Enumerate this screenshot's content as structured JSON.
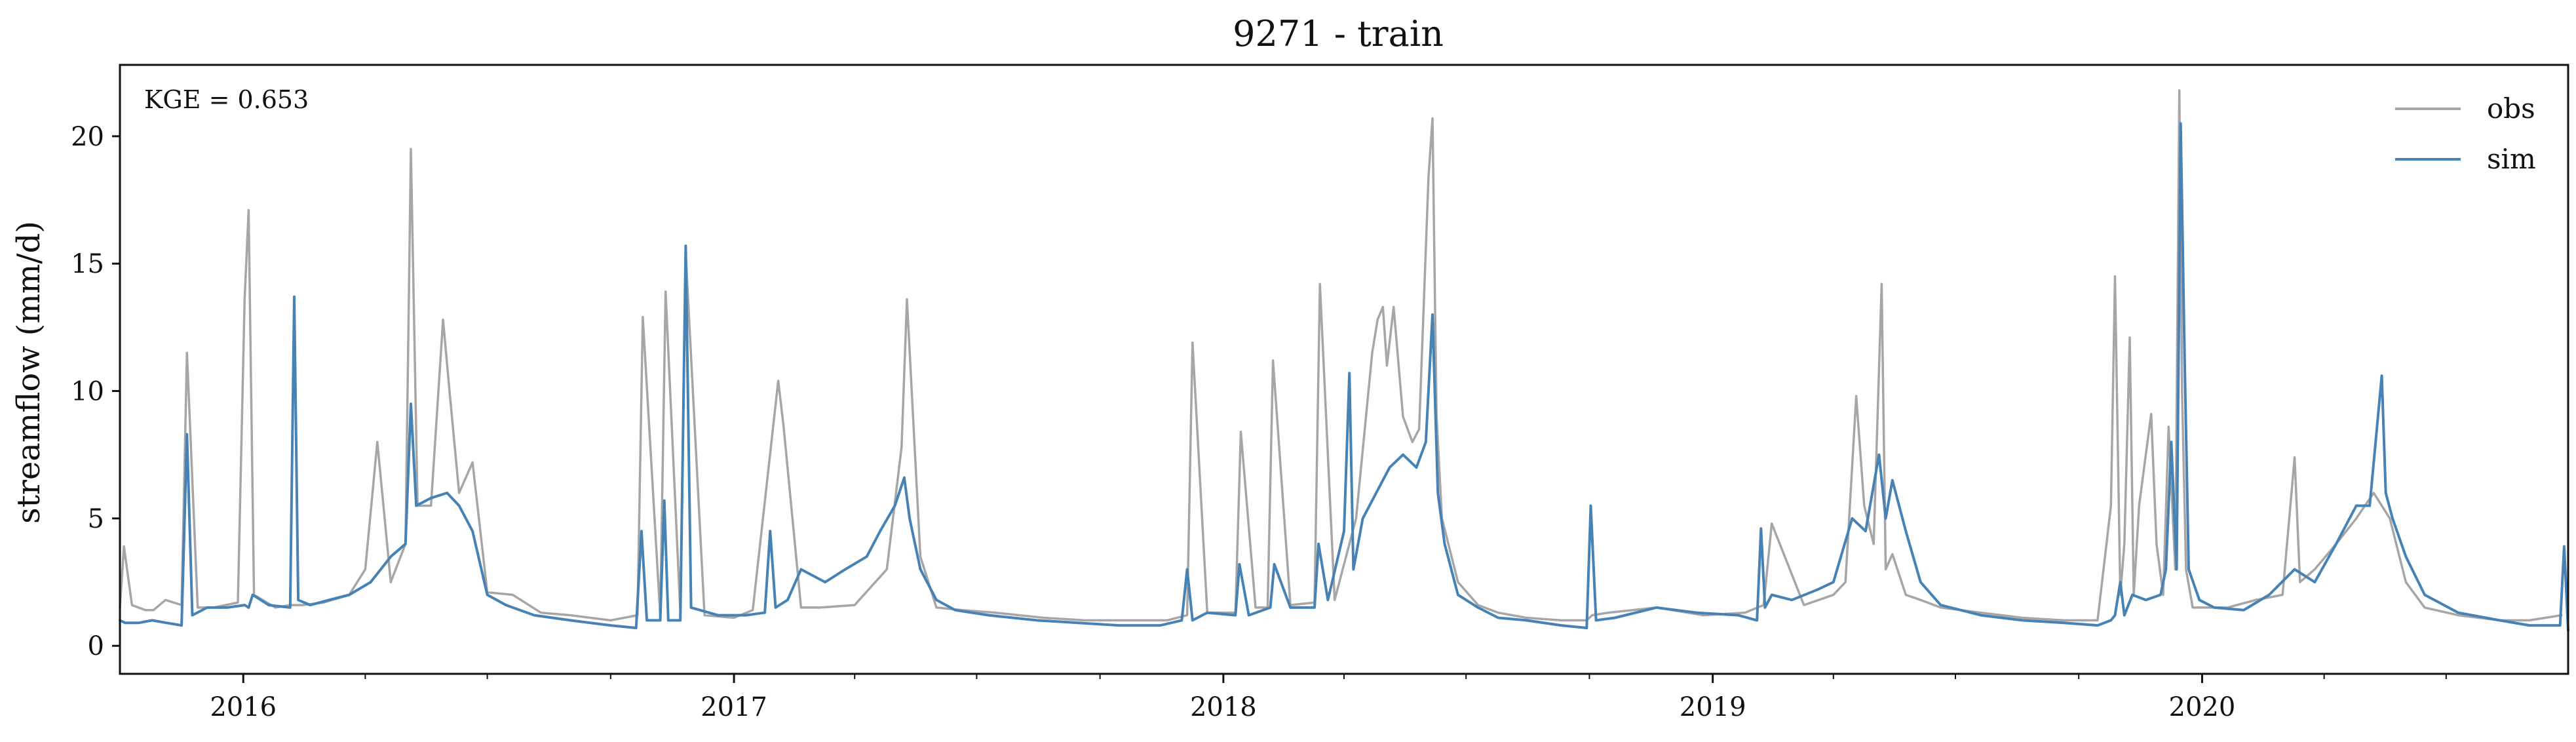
{
  "chart_data": {
    "type": "line",
    "title": "9271 - train",
    "ylabel": "streamflow (mm/d)",
    "xlabel": "",
    "annotation": "KGE = 0.653",
    "x_range": [
      "2015-10-01",
      "2020-09-30"
    ],
    "ylim": [
      -1.1,
      22.8
    ],
    "y_ticks": [
      0,
      5,
      10,
      15,
      20
    ],
    "x_ticks": [
      {
        "date": "2016-01-01",
        "label": "2016"
      },
      {
        "date": "2017-01-01",
        "label": "2017"
      },
      {
        "date": "2018-01-01",
        "label": "2018"
      },
      {
        "date": "2019-01-01",
        "label": "2019"
      },
      {
        "date": "2020-01-01",
        "label": "2020"
      }
    ],
    "x_minor_ticks": [
      "2016-04-01",
      "2016-07-01",
      "2016-10-01",
      "2017-04-01",
      "2017-07-01",
      "2017-10-01",
      "2018-04-01",
      "2018-07-01",
      "2018-10-01",
      "2019-04-01",
      "2019-07-01",
      "2019-10-01",
      "2020-04-01",
      "2020-07-01"
    ],
    "legend": {
      "placement": "top-right",
      "entries": [
        "obs",
        "sim"
      ]
    },
    "grid": false,
    "series": [
      {
        "name": "obs",
        "color": "#a6a6a6",
        "x": [
          "2015-10-01",
          "2015-10-04",
          "2015-10-10",
          "2015-10-20",
          "2015-10-26",
          "2015-11-04",
          "2015-11-16",
          "2015-11-20",
          "2015-11-28",
          "2015-12-10",
          "2015-12-28",
          "2016-01-02",
          "2016-01-05",
          "2016-01-09",
          "2016-01-25",
          "2016-02-05",
          "2016-02-14",
          "2016-03-01",
          "2016-03-20",
          "2016-04-01",
          "2016-04-10",
          "2016-04-20",
          "2016-05-01",
          "2016-05-05",
          "2016-05-10",
          "2016-05-20",
          "2016-05-29",
          "2016-06-03",
          "2016-06-10",
          "2016-06-20",
          "2016-07-01",
          "2016-07-20",
          "2016-08-10",
          "2016-09-01",
          "2016-10-01",
          "2016-10-21",
          "2016-10-25",
          "2016-11-07",
          "2016-11-11",
          "2016-11-22",
          "2016-11-26",
          "2016-12-10",
          "2017-01-01",
          "2017-01-15",
          "2017-02-03",
          "2017-02-07",
          "2017-02-20",
          "2017-03-06",
          "2017-04-01",
          "2017-04-25",
          "2017-05-06",
          "2017-05-10",
          "2017-05-20",
          "2017-06-01",
          "2017-06-20",
          "2017-07-15",
          "2017-08-20",
          "2017-09-20",
          "2017-10-25",
          "2017-11-20",
          "2017-12-05",
          "2017-12-09",
          "2017-12-20",
          "2018-01-10",
          "2018-01-14",
          "2018-01-25",
          "2018-02-03",
          "2018-02-07",
          "2018-02-20",
          "2018-03-10",
          "2018-03-14",
          "2018-03-25",
          "2018-04-10",
          "2018-04-22",
          "2018-04-26",
          "2018-04-30",
          "2018-05-03",
          "2018-05-08",
          "2018-05-15",
          "2018-05-22",
          "2018-05-27",
          "2018-06-03",
          "2018-06-06",
          "2018-06-09",
          "2018-06-13",
          "2018-06-25",
          "2018-07-10",
          "2018-07-25",
          "2018-08-15",
          "2018-09-10",
          "2018-09-29",
          "2018-10-03",
          "2018-10-15",
          "2018-11-20",
          "2018-12-25",
          "2019-01-25",
          "2019-02-08",
          "2019-02-14",
          "2019-03-10",
          "2019-04-01",
          "2019-04-10",
          "2019-04-18",
          "2019-04-24",
          "2019-05-01",
          "2019-05-07",
          "2019-05-10",
          "2019-05-15",
          "2019-05-25",
          "2019-06-05",
          "2019-06-20",
          "2019-07-20",
          "2019-08-20",
          "2019-09-20",
          "2019-10-15",
          "2019-10-25",
          "2019-10-28",
          "2019-11-01",
          "2019-11-04",
          "2019-11-08",
          "2019-11-11",
          "2019-11-15",
          "2019-11-24",
          "2019-11-28",
          "2019-12-03",
          "2019-12-07",
          "2019-12-12",
          "2019-12-15",
          "2019-12-17",
          "2019-12-20",
          "2019-12-25",
          "2020-01-05",
          "2020-01-20",
          "2020-02-10",
          "2020-03-01",
          "2020-03-10",
          "2020-03-14",
          "2020-03-25",
          "2020-04-10",
          "2020-04-25",
          "2020-05-08",
          "2020-05-20",
          "2020-06-01",
          "2020-06-15",
          "2020-07-10",
          "2020-08-10",
          "2020-09-01",
          "2020-09-25"
        ],
        "values": [
          1.5,
          3.9,
          1.6,
          1.4,
          1.4,
          1.8,
          1.6,
          11.5,
          1.5,
          1.5,
          1.7,
          13.6,
          17.1,
          2.0,
          1.5,
          1.6,
          1.6,
          1.7,
          2.0,
          3.0,
          8.0,
          2.5,
          4.0,
          19.5,
          5.5,
          5.5,
          12.8,
          9.9,
          6.0,
          7.2,
          2.1,
          2.0,
          1.3,
          1.2,
          1.0,
          1.2,
          12.9,
          1.2,
          13.9,
          1.3,
          15.4,
          1.2,
          1.1,
          1.4,
          10.4,
          8.6,
          1.5,
          1.5,
          1.6,
          3.0,
          7.8,
          13.6,
          3.5,
          1.5,
          1.4,
          1.3,
          1.1,
          1.0,
          1.0,
          1.0,
          1.2,
          11.9,
          1.3,
          1.3,
          8.4,
          1.5,
          1.5,
          11.2,
          1.6,
          1.7,
          14.2,
          1.8,
          5.0,
          11.5,
          12.8,
          13.3,
          11.0,
          13.3,
          9.0,
          8.0,
          8.5,
          18.4,
          20.7,
          9.0,
          5.0,
          2.5,
          1.6,
          1.3,
          1.1,
          1.0,
          1.0,
          1.2,
          1.3,
          1.5,
          1.2,
          1.3,
          1.6,
          4.8,
          1.6,
          2.0,
          2.5,
          9.8,
          5.5,
          4.0,
          14.2,
          3.0,
          3.6,
          2.0,
          1.8,
          1.5,
          1.3,
          1.1,
          1.0,
          1.0,
          5.5,
          14.5,
          2.0,
          4.0,
          12.1,
          2.0,
          5.5,
          9.1,
          4.0,
          2.0,
          8.6,
          3.0,
          21.8,
          10.0,
          3.0,
          1.5,
          1.5,
          1.5,
          1.8,
          2.0,
          7.4,
          2.5,
          3.0,
          4.0,
          5.0,
          6.0,
          5.0,
          2.5,
          1.5,
          1.2,
          1.0,
          1.0,
          1.2
        ]
      },
      {
        "name": "sim",
        "color": "#4682b4",
        "x": [
          "2015-10-01",
          "2015-10-05",
          "2015-10-15",
          "2015-10-25",
          "2015-11-05",
          "2015-11-16",
          "2015-11-20",
          "2015-11-24",
          "2015-12-05",
          "2015-12-20",
          "2016-01-02",
          "2016-01-05",
          "2016-01-08",
          "2016-01-20",
          "2016-02-05",
          "2016-02-08",
          "2016-02-11",
          "2016-02-20",
          "2016-03-05",
          "2016-03-20",
          "2016-04-05",
          "2016-04-20",
          "2016-05-01",
          "2016-05-05",
          "2016-05-09",
          "2016-05-20",
          "2016-06-01",
          "2016-06-10",
          "2016-06-20",
          "2016-07-01",
          "2016-07-15",
          "2016-08-05",
          "2016-09-01",
          "2016-10-01",
          "2016-10-20",
          "2016-10-24",
          "2016-10-28",
          "2016-11-07",
          "2016-11-10",
          "2016-11-13",
          "2016-11-22",
          "2016-11-26",
          "2016-11-30",
          "2016-12-20",
          "2017-01-10",
          "2017-01-24",
          "2017-01-28",
          "2017-02-01",
          "2017-02-10",
          "2017-02-20",
          "2017-03-10",
          "2017-03-25",
          "2017-04-10",
          "2017-04-20",
          "2017-05-01",
          "2017-05-08",
          "2017-05-12",
          "2017-05-20",
          "2017-06-01",
          "2017-06-15",
          "2017-07-10",
          "2017-08-15",
          "2017-09-15",
          "2017-10-15",
          "2017-11-15",
          "2017-12-01",
          "2017-12-05",
          "2017-12-09",
          "2017-12-20",
          "2018-01-10",
          "2018-01-13",
          "2018-01-20",
          "2018-02-05",
          "2018-02-08",
          "2018-02-20",
          "2018-03-10",
          "2018-03-13",
          "2018-03-20",
          "2018-04-01",
          "2018-04-05",
          "2018-04-08",
          "2018-04-15",
          "2018-04-25",
          "2018-05-05",
          "2018-05-15",
          "2018-05-25",
          "2018-06-01",
          "2018-06-06",
          "2018-06-10",
          "2018-06-15",
          "2018-06-25",
          "2018-07-10",
          "2018-07-25",
          "2018-08-15",
          "2018-09-10",
          "2018-09-29",
          "2018-10-02",
          "2018-10-06",
          "2018-10-20",
          "2018-11-20",
          "2018-12-20",
          "2019-01-20",
          "2019-02-03",
          "2019-02-06",
          "2019-02-09",
          "2019-02-14",
          "2019-03-01",
          "2019-03-20",
          "2019-04-01",
          "2019-04-15",
          "2019-04-25",
          "2019-05-05",
          "2019-05-10",
          "2019-05-15",
          "2019-05-25",
          "2019-06-05",
          "2019-06-20",
          "2019-07-20",
          "2019-08-20",
          "2019-09-20",
          "2019-10-15",
          "2019-10-25",
          "2019-10-28",
          "2019-11-01",
          "2019-11-04",
          "2019-11-10",
          "2019-11-20",
          "2019-12-01",
          "2019-12-05",
          "2019-12-09",
          "2019-12-13",
          "2019-12-16",
          "2019-12-19",
          "2019-12-22",
          "2019-12-30",
          "2020-01-10",
          "2020-02-01",
          "2020-02-20",
          "2020-03-10",
          "2020-03-25",
          "2020-04-10",
          "2020-04-25",
          "2020-05-05",
          "2020-05-14",
          "2020-05-17",
          "2020-05-22",
          "2020-06-01",
          "2020-06-15",
          "2020-07-10",
          "2020-08-10",
          "2020-09-01",
          "2020-09-24",
          "2020-09-27",
          "2020-09-30"
        ],
        "values": [
          1.0,
          0.9,
          0.9,
          1.0,
          0.9,
          0.8,
          8.3,
          1.2,
          1.5,
          1.5,
          1.6,
          1.5,
          2.0,
          1.6,
          1.5,
          13.7,
          1.8,
          1.6,
          1.8,
          2.0,
          2.5,
          3.5,
          4.0,
          9.5,
          5.5,
          5.8,
          6.0,
          5.5,
          4.5,
          2.0,
          1.6,
          1.2,
          1.0,
          0.8,
          0.7,
          4.5,
          1.0,
          1.0,
          5.7,
          1.0,
          1.0,
          15.7,
          1.5,
          1.2,
          1.2,
          1.3,
          4.5,
          1.5,
          1.8,
          3.0,
          2.5,
          3.0,
          3.5,
          4.5,
          5.5,
          6.6,
          5.0,
          3.0,
          1.8,
          1.4,
          1.2,
          1.0,
          0.9,
          0.8,
          0.8,
          1.0,
          3.0,
          1.0,
          1.3,
          1.2,
          3.2,
          1.2,
          1.5,
          3.2,
          1.5,
          1.5,
          4.0,
          1.8,
          4.5,
          10.7,
          3.0,
          5.0,
          6.0,
          7.0,
          7.5,
          7.0,
          8.0,
          13.0,
          6.0,
          4.0,
          2.0,
          1.5,
          1.1,
          1.0,
          0.8,
          0.7,
          5.5,
          1.0,
          1.1,
          1.5,
          1.3,
          1.2,
          1.0,
          4.6,
          1.5,
          2.0,
          1.8,
          2.2,
          2.5,
          5.0,
          4.5,
          7.5,
          5.0,
          6.5,
          4.5,
          2.5,
          1.6,
          1.2,
          1.0,
          0.9,
          0.8,
          1.0,
          1.2,
          2.5,
          1.2,
          2.0,
          1.8,
          2.0,
          3.0,
          8.0,
          3.0,
          20.5,
          11.2,
          3.0,
          1.8,
          1.5,
          1.4,
          2.0,
          3.0,
          2.5,
          4.0,
          5.5,
          5.5,
          10.6,
          6.0,
          5.0,
          3.5,
          2.0,
          1.3,
          1.0,
          0.8,
          0.8,
          3.9,
          0.6
        ]
      }
    ]
  }
}
